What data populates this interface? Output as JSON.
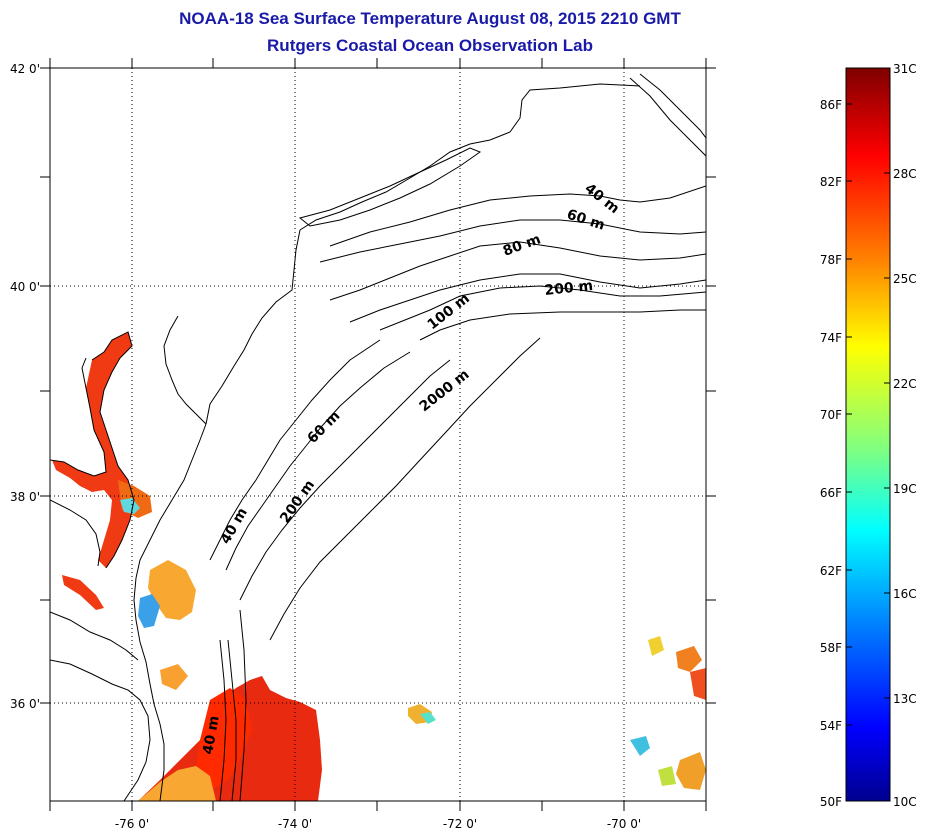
{
  "header": {
    "title": "NOAA-18 Sea Surface Temperature August 08, 2015 2210 GMT",
    "subtitle": "Rutgers Coastal Ocean Observation Lab"
  },
  "map": {
    "lat_labels": [
      "42 0'",
      "40 0'",
      "38 0'",
      "36 0'"
    ],
    "lon_labels": [
      "-76 0'",
      "-74 0'",
      "-72 0'",
      "-70 0'"
    ],
    "contour_labels": [
      "40 m",
      "60 m",
      "80 m",
      "200 m",
      "100 m",
      "2000 m",
      "60 m",
      "40 m",
      "200 m",
      "40 m"
    ]
  },
  "colorbar": {
    "fahrenheit_labels": [
      "86F",
      "82F",
      "78F",
      "74F",
      "70F",
      "66F",
      "62F",
      "58F",
      "54F",
      "50F"
    ],
    "celsius_labels": [
      "31C",
      "28C",
      "25C",
      "22C",
      "19C",
      "16C",
      "13C",
      "10C"
    ],
    "colors": [
      "#7f0000",
      "#ff0000",
      "#ff8000",
      "#ffff00",
      "#80ff80",
      "#00ffff",
      "#0080ff",
      "#0000ff",
      "#00008f"
    ]
  }
}
